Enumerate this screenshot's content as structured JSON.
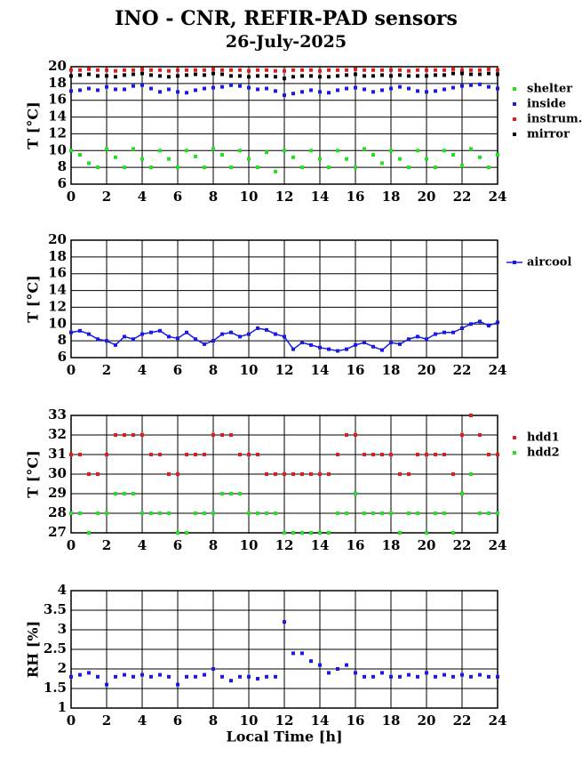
{
  "title": "INO - CNR, REFIR-PAD sensors",
  "subtitle": "26-July-2025",
  "chart_data": [
    {
      "type": "scatter",
      "ylabel": "T [°C]",
      "grid": true,
      "x": [
        0,
        0.5,
        1,
        1.5,
        2,
        2.5,
        3,
        3.5,
        4,
        4.5,
        5,
        5.5,
        6,
        6.5,
        7,
        7.5,
        8,
        8.5,
        9,
        9.5,
        10,
        10.5,
        11,
        11.5,
        12,
        12.5,
        13,
        13.5,
        14,
        14.5,
        15,
        15.5,
        16,
        16.5,
        17,
        17.5,
        18,
        18.5,
        19,
        19.5,
        20,
        20.5,
        21,
        21.5,
        22,
        22.5,
        23,
        23.5,
        24
      ],
      "xlim": [
        0,
        24
      ],
      "xticks": [
        0,
        2,
        4,
        6,
        8,
        10,
        12,
        14,
        16,
        18,
        20,
        22,
        24
      ],
      "ylim": [
        6,
        20
      ],
      "yticks": [
        6,
        8,
        10,
        12,
        14,
        16,
        18,
        20
      ],
      "series": [
        {
          "name": "shelter",
          "color": "#22e022",
          "values": [
            10,
            9.5,
            8.5,
            8,
            10.2,
            9.2,
            8,
            10.2,
            9,
            8,
            10,
            9,
            8,
            10,
            9.3,
            8,
            10.2,
            9.5,
            8,
            10,
            9,
            8,
            9.8,
            7.5,
            10,
            9.2,
            8,
            10,
            9,
            8,
            10,
            9,
            8,
            10.2,
            9.5,
            8.5,
            10,
            9,
            8,
            10,
            9,
            8,
            10,
            9.5,
            8.2,
            10.2,
            9.2,
            8,
            9.5
          ]
        },
        {
          "name": "inside",
          "color": "#1a1ae6",
          "values": [
            17.1,
            17.2,
            17.4,
            17.2,
            17.6,
            17.3,
            17.3,
            17.7,
            17.8,
            17.4,
            17,
            17.3,
            17,
            16.9,
            17.2,
            17.4,
            17.5,
            17.6,
            17.8,
            17.7,
            17.5,
            17.3,
            17.4,
            17.1,
            16.6,
            16.8,
            17,
            17.2,
            17,
            16.9,
            17.2,
            17.4,
            17.5,
            17.3,
            17,
            17.2,
            17.4,
            17.6,
            17.4,
            17.1,
            17,
            17.1,
            17.3,
            17.5,
            17.7,
            17.8,
            17.9,
            17.6,
            17.4
          ]
        },
        {
          "name": "instrum.",
          "color": "#e61a1a",
          "values": [
            19.6,
            19.6,
            19.7,
            19.6,
            19.6,
            19.5,
            19.6,
            19.6,
            19.7,
            19.6,
            19.6,
            19.5,
            19.6,
            19.6,
            19.6,
            19.6,
            19.7,
            19.6,
            19.6,
            19.6,
            19.5,
            19.6,
            19.6,
            19.5,
            19.5,
            19.6,
            19.6,
            19.6,
            19.5,
            19.6,
            19.6,
            19.6,
            19.7,
            19.6,
            19.6,
            19.6,
            19.6,
            19.6,
            19.5,
            19.6,
            19.6,
            19.6,
            19.6,
            19.7,
            19.6,
            19.6,
            19.6,
            19.7,
            19.6
          ]
        },
        {
          "name": "mirror",
          "color": "#000000",
          "values": [
            18.9,
            19,
            19.1,
            18.9,
            18.9,
            18.8,
            19,
            19.1,
            19.2,
            19,
            18.9,
            18.8,
            18.9,
            19,
            19.1,
            19,
            19.2,
            19.1,
            18.9,
            18.9,
            18.8,
            18.9,
            18.9,
            18.8,
            18.6,
            18.8,
            18.9,
            18.9,
            18.8,
            18.8,
            18.9,
            19,
            19.1,
            18.9,
            18.9,
            19,
            18.9,
            19,
            18.9,
            18.9,
            18.9,
            19,
            19,
            19.2,
            19.2,
            19.1,
            19.1,
            19.2,
            19.1
          ]
        }
      ]
    },
    {
      "type": "line",
      "ylabel": "T [°C]",
      "grid": true,
      "x": [
        0,
        0.5,
        1,
        1.5,
        2,
        2.5,
        3,
        3.5,
        4,
        4.5,
        5,
        5.5,
        6,
        6.5,
        7,
        7.5,
        8,
        8.5,
        9,
        9.5,
        10,
        10.5,
        11,
        11.5,
        12,
        12.5,
        13,
        13.5,
        14,
        14.5,
        15,
        15.5,
        16,
        16.5,
        17,
        17.5,
        18,
        18.5,
        19,
        19.5,
        20,
        20.5,
        21,
        21.5,
        22,
        22.5,
        23,
        23.5,
        24
      ],
      "xlim": [
        0,
        24
      ],
      "xticks": [
        0,
        2,
        4,
        6,
        8,
        10,
        12,
        14,
        16,
        18,
        20,
        22,
        24
      ],
      "ylim": [
        6,
        20
      ],
      "yticks": [
        6,
        8,
        10,
        12,
        14,
        16,
        18,
        20
      ],
      "series": [
        {
          "name": "aircool",
          "color": "#1a1ae6",
          "values": [
            9,
            9.2,
            8.8,
            8.2,
            8,
            7.5,
            8.5,
            8.2,
            8.8,
            9,
            9.2,
            8.5,
            8.3,
            9,
            8.2,
            7.6,
            8,
            8.8,
            9,
            8.5,
            8.8,
            9.5,
            9.3,
            8.8,
            8.5,
            7,
            7.8,
            7.5,
            7.2,
            7,
            6.8,
            7,
            7.5,
            7.8,
            7.3,
            6.9,
            7.8,
            7.6,
            8.2,
            8.5,
            8.2,
            8.8,
            9,
            9,
            9.5,
            10,
            10.3,
            9.8,
            10.2
          ]
        }
      ]
    },
    {
      "type": "scatter",
      "ylabel": "T [°C]",
      "grid": true,
      "x": [
        0,
        0.5,
        1,
        1.5,
        2,
        2.5,
        3,
        3.5,
        4,
        4.5,
        5,
        5.5,
        6,
        6.5,
        7,
        7.5,
        8,
        8.5,
        9,
        9.5,
        10,
        10.5,
        11,
        11.5,
        12,
        12.5,
        13,
        13.5,
        14,
        14.5,
        15,
        15.5,
        16,
        16.5,
        17,
        17.5,
        18,
        18.5,
        19,
        19.5,
        20,
        20.5,
        21,
        21.5,
        22,
        22.5,
        23,
        23.5,
        24
      ],
      "xlim": [
        0,
        24
      ],
      "xticks": [
        0,
        2,
        4,
        6,
        8,
        10,
        12,
        14,
        16,
        18,
        20,
        22,
        24
      ],
      "ylim": [
        27,
        33
      ],
      "yticks": [
        27,
        28,
        29,
        30,
        31,
        32,
        33
      ],
      "series": [
        {
          "name": "hdd1",
          "color": "#e61a1a",
          "values": [
            31,
            31,
            30,
            30,
            31,
            32,
            32,
            32,
            32,
            31,
            31,
            30,
            30,
            31,
            31,
            31,
            32,
            32,
            32,
            31,
            31,
            31,
            30,
            30,
            30,
            30,
            30,
            30,
            30,
            30,
            31,
            32,
            32,
            31,
            31,
            31,
            31,
            30,
            30,
            31,
            31,
            31,
            31,
            30,
            32,
            33,
            32,
            31,
            31
          ]
        },
        {
          "name": "hdd2",
          "color": "#22e022",
          "values": [
            28,
            28,
            27,
            28,
            28,
            29,
            29,
            29,
            28,
            28,
            28,
            28,
            27,
            27,
            28,
            28,
            28,
            29,
            29,
            29,
            28,
            28,
            28,
            28,
            27,
            27,
            27,
            27,
            27,
            27,
            28,
            28,
            29,
            28,
            28,
            28,
            28,
            27,
            28,
            28,
            27,
            28,
            28,
            27,
            29,
            30,
            28,
            28,
            28
          ]
        }
      ]
    },
    {
      "type": "scatter",
      "ylabel": "RH [%]",
      "xlabel": "Local Time [h]",
      "grid": true,
      "x": [
        0,
        0.5,
        1,
        1.5,
        2,
        2.5,
        3,
        3.5,
        4,
        4.5,
        5,
        5.5,
        6,
        6.5,
        7,
        7.5,
        8,
        8.5,
        9,
        9.5,
        10,
        10.5,
        11,
        11.5,
        12,
        12.5,
        13,
        13.5,
        14,
        14.5,
        15,
        15.5,
        16,
        16.5,
        17,
        17.5,
        18,
        18.5,
        19,
        19.5,
        20,
        20.5,
        21,
        21.5,
        22,
        22.5,
        23,
        23.5,
        24
      ],
      "xlim": [
        0,
        24
      ],
      "xticks": [
        0,
        2,
        4,
        6,
        8,
        10,
        12,
        14,
        16,
        18,
        20,
        22,
        24
      ],
      "ylim": [
        1,
        4
      ],
      "yticks": [
        1,
        1.5,
        2,
        2.5,
        3,
        3.5,
        4
      ],
      "series": [
        {
          "color": "#1a1ae6",
          "values": [
            1.8,
            1.85,
            1.9,
            1.8,
            1.6,
            1.8,
            1.85,
            1.8,
            1.85,
            1.8,
            1.85,
            1.8,
            1.6,
            1.8,
            1.8,
            1.85,
            2,
            1.8,
            1.7,
            1.8,
            1.8,
            1.75,
            1.8,
            1.8,
            3.2,
            2.4,
            2.4,
            2.2,
            2.1,
            1.9,
            2,
            2.1,
            1.9,
            1.8,
            1.8,
            1.9,
            1.8,
            1.8,
            1.85,
            1.8,
            1.9,
            1.8,
            1.85,
            1.8,
            1.85,
            1.8,
            1.85,
            1.8,
            1.8
          ]
        }
      ]
    }
  ]
}
